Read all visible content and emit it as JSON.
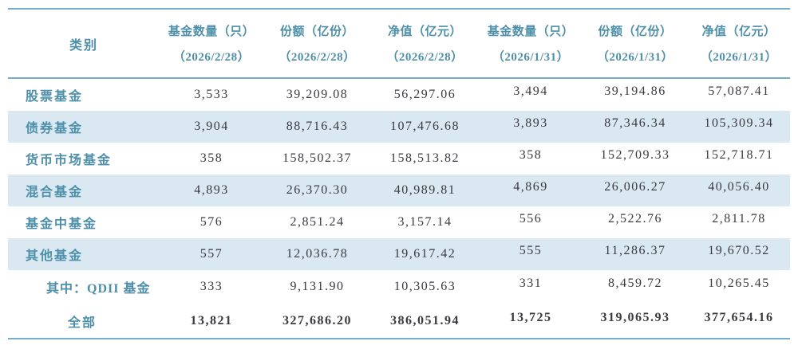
{
  "colors": {
    "accent_text": "#4E8FA9",
    "line": "#74AFC8",
    "stripe": "#DAE9F1",
    "number_text": "#3A3A40"
  },
  "table": {
    "category_header": "类别",
    "columns": [
      {
        "label": "基金数量（只）",
        "date": "（2026/2/28）"
      },
      {
        "label": "份额（亿份）",
        "date": "（2026/2/28）"
      },
      {
        "label": "净值（亿元）",
        "date": "（2026/2/28）"
      },
      {
        "label": "基金数量（只）",
        "date": "（2026/1/31）"
      },
      {
        "label": "份额（亿份）",
        "date": "（2026/1/31）"
      },
      {
        "label": "净值（亿元）",
        "date": "（2026/1/31）"
      }
    ],
    "rows": [
      {
        "category": "股票基金",
        "values": [
          "3,533",
          "39,209.08",
          "56,297.06",
          "3,494",
          "39,194.86",
          "57,087.41"
        ],
        "striped": false,
        "indent": 0,
        "bold": false
      },
      {
        "category": "债券基金",
        "values": [
          "3,904",
          "88,716.43",
          "107,476.68",
          "3,893",
          "87,346.34",
          "105,309.34"
        ],
        "striped": true,
        "indent": 0,
        "bold": false
      },
      {
        "category": "货币市场基金",
        "values": [
          "358",
          "158,502.37",
          "158,513.82",
          "358",
          "152,709.33",
          "152,718.71"
        ],
        "striped": false,
        "indent": 0,
        "bold": false
      },
      {
        "category": "混合基金",
        "values": [
          "4,893",
          "26,370.30",
          "40,989.81",
          "4,869",
          "26,006.27",
          "40,056.40"
        ],
        "striped": true,
        "indent": 0,
        "bold": false
      },
      {
        "category": "基金中基金",
        "values": [
          "576",
          "2,851.24",
          "3,157.14",
          "556",
          "2,522.76",
          "2,811.78"
        ],
        "striped": false,
        "indent": 0,
        "bold": false
      },
      {
        "category": "其他基金",
        "values": [
          "557",
          "12,036.78",
          "19,617.42",
          "555",
          "11,286.37",
          "19,670.52"
        ],
        "striped": true,
        "indent": 0,
        "bold": false
      },
      {
        "category": "其中：QDII 基金",
        "values": [
          "333",
          "9,131.90",
          "10,305.63",
          "331",
          "8,459.72",
          "10,265.45"
        ],
        "striped": false,
        "indent": 1,
        "bold": false
      },
      {
        "category": "全部",
        "values": [
          "13,821",
          "327,686.20",
          "386,051.94",
          "13,725",
          "319,065.93",
          "377,654.16"
        ],
        "striped": false,
        "indent": 2,
        "bold": true
      }
    ]
  }
}
